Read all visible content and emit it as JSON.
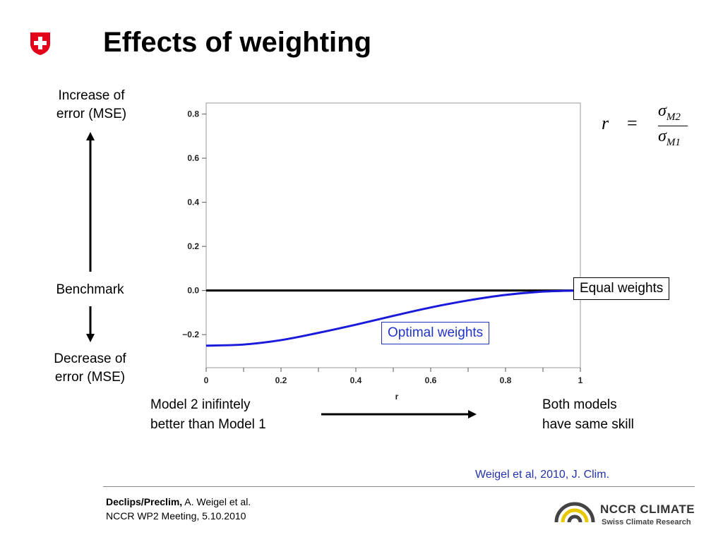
{
  "header": {
    "title": "Effects of weighting",
    "flag_icon": "swiss-shield-icon",
    "flag_color": "#e2001a"
  },
  "left_labels": {
    "increase": [
      "Increase of",
      "error (MSE)"
    ],
    "benchmark": "Benchmark",
    "decrease": [
      "Decrease of",
      "error (MSE)"
    ]
  },
  "formula": {
    "lhs": "r",
    "equals": "=",
    "numerator": "σ",
    "numerator_sub": "M2",
    "denominator": "σ",
    "denominator_sub": "M1"
  },
  "annotations": {
    "equal_weights": "Equal weights",
    "optimal_weights": "Optimal weights"
  },
  "bottom_labels": {
    "left": [
      "Model 2 inifintely",
      "better than Model 1"
    ],
    "right": [
      "Both models",
      "have same skill"
    ]
  },
  "citation": "Weigel et al, 2010, J. Clim.",
  "footer": {
    "project": "Declips/Preclim,",
    "author": " A. Weigel et al.",
    "meeting": "NCCR WP2 Meeting, 5.10.2010"
  },
  "logo": {
    "name": "NCCR CLIMATE",
    "subtitle": "Swiss Climate Research",
    "icon": "nccr-arcs-icon",
    "accent_color": "#e8c800"
  },
  "chart_data": {
    "type": "line",
    "xlabel": "r",
    "ylabel": "",
    "xlim": [
      0,
      1
    ],
    "ylim": [
      -0.35,
      0.85
    ],
    "xticks": [
      0,
      0.2,
      0.4,
      0.6,
      0.8,
      1
    ],
    "xtick_labels": [
      "0",
      "0.2",
      "0.4",
      "0.6",
      "0.8",
      "1"
    ],
    "yticks": [
      -0.2,
      0.0,
      0.2,
      0.4,
      0.6,
      0.8
    ],
    "ytick_labels": [
      "−0.2",
      "0.0",
      "0.2",
      "0.4",
      "0.6",
      "0.8"
    ],
    "grid": false,
    "series": [
      {
        "color": "#000000",
        "x": [
          0,
          1
        ],
        "y": [
          0,
          0
        ]
      },
      {
        "color": "#1a1adb",
        "x": [
          0,
          0.1,
          0.2,
          0.3,
          0.4,
          0.5,
          0.6,
          0.7,
          0.8,
          0.9,
          1.0
        ],
        "y": [
          -0.25,
          -0.245,
          -0.225,
          -0.192,
          -0.155,
          -0.115,
          -0.077,
          -0.045,
          -0.02,
          -0.005,
          0.0
        ]
      }
    ]
  }
}
